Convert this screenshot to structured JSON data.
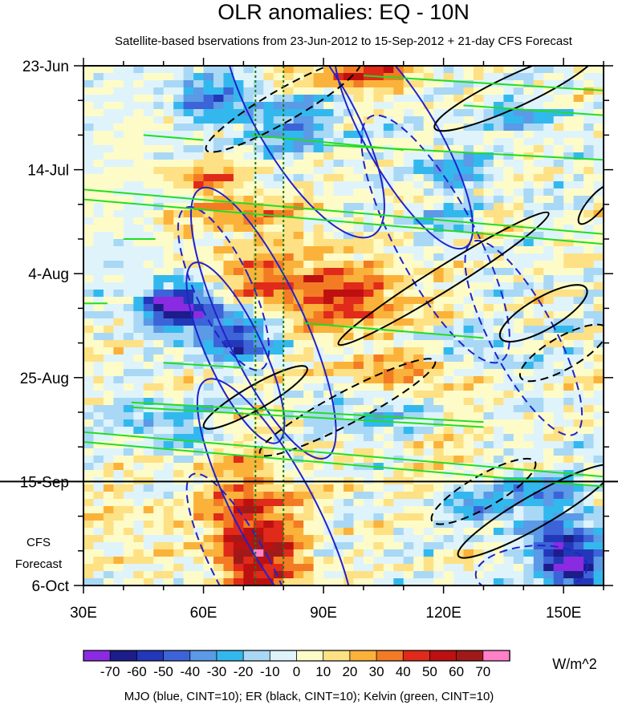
{
  "chart_data": {
    "type": "heatmap",
    "title": "OLR anomalies: EQ - 10N",
    "subtitle": "Satellite-based bservations from 23-Jun-2012 to 15-Sep-2012 + 21-day CFS Forecast",
    "x_axis": {
      "unit": "degrees longitude",
      "range": [
        30,
        160
      ],
      "major_ticks": [
        30,
        60,
        90,
        120,
        150
      ],
      "tick_labels": [
        "30E",
        "60E",
        "90E",
        "120E",
        "150E"
      ],
      "minor_tick_step": 10
    },
    "y_axis": {
      "unit": "days since 23-Jun-2012 (increasing downward)",
      "range": [
        0,
        105
      ],
      "major_ticks": [
        0,
        21,
        42,
        63,
        84,
        105
      ],
      "tick_labels": [
        "23-Jun",
        "14-Jul",
        "4-Aug",
        "25-Aug",
        "15-Sep",
        "6-Oct"
      ],
      "minor_tick_step": 7
    },
    "forecast_divider_day": 84,
    "forecast_label_lines": [
      "CFS",
      "Forecast"
    ],
    "reference_longitudes": [
      73,
      80
    ],
    "colorbar": {
      "unit": "W/m^2",
      "levels": [
        -70,
        -60,
        -50,
        -40,
        -30,
        -20,
        -10,
        0,
        10,
        20,
        30,
        40,
        50,
        60,
        70
      ],
      "tick_labels": [
        "-70",
        "-60",
        "-50",
        "-40",
        "-30",
        "-20",
        "-10",
        "0",
        "10",
        "20",
        "30",
        "40",
        "50",
        "60",
        "70"
      ],
      "colors": [
        "#8a2be2",
        "#1c1c8a",
        "#2238b8",
        "#3c64d8",
        "#5a9ae6",
        "#33b8ee",
        "#a8d8f5",
        "#dff3fb",
        "#fdfcc8",
        "#fde184",
        "#fbb23a",
        "#f37b24",
        "#e02a1a",
        "#bd1010",
        "#a01a1a",
        "#ff7fc8"
      ]
    },
    "contour_footer": "MJO (blue, CINT=10); ER (black, CINT=10); Kelvin (green, CINT=10)",
    "shading_features": [
      {
        "lon": 75,
        "day": 44,
        "w": 14,
        "h": 7,
        "v": 35
      },
      {
        "lon": 96,
        "day": 47,
        "w": 18,
        "h": 8,
        "v": 38
      },
      {
        "lon": 70,
        "day": 30,
        "w": 14,
        "h": 5,
        "v": 28
      },
      {
        "lon": 60,
        "day": 22,
        "w": 12,
        "h": 4,
        "v": 25
      },
      {
        "lon": 110,
        "day": 62,
        "w": 18,
        "h": 4,
        "v": 28
      },
      {
        "lon": 100,
        "day": 2,
        "w": 14,
        "h": 3,
        "v": 45
      },
      {
        "lon": 125,
        "day": 33,
        "w": 12,
        "h": 3,
        "v": 22
      },
      {
        "lon": 70,
        "day": 94,
        "w": 9,
        "h": 14,
        "v": 55
      },
      {
        "lon": 80,
        "day": 100,
        "w": 8,
        "h": 7,
        "v": 35
      },
      {
        "lon": 88,
        "day": 88,
        "w": 9,
        "h": 5,
        "v": 12
      },
      {
        "lon": 40,
        "day": 94,
        "w": 14,
        "h": 10,
        "v": 12
      },
      {
        "lon": 122,
        "day": 80,
        "w": 14,
        "h": 4,
        "v": 12
      },
      {
        "lon": 150,
        "day": 96,
        "w": 10,
        "h": 8,
        "v": -40
      },
      {
        "lon": 152,
        "day": 101,
        "w": 7,
        "h": 5,
        "v": -55
      },
      {
        "lon": 130,
        "day": 90,
        "w": 8,
        "h": 3,
        "v": -40
      },
      {
        "lon": 140,
        "day": 85,
        "w": 12,
        "h": 3,
        "v": -30
      },
      {
        "lon": 62,
        "day": 50,
        "w": 14,
        "h": 5,
        "v": -45
      },
      {
        "lon": 68,
        "day": 56,
        "w": 10,
        "h": 3,
        "v": -55
      },
      {
        "lon": 52,
        "day": 48,
        "w": 8,
        "h": 3,
        "v": -60
      },
      {
        "lon": 80,
        "day": 12,
        "w": 14,
        "h": 6,
        "v": -32
      },
      {
        "lon": 60,
        "day": 6,
        "w": 10,
        "h": 4,
        "v": -40
      },
      {
        "lon": 122,
        "day": 32,
        "w": 10,
        "h": 3,
        "v": -40
      },
      {
        "lon": 122,
        "day": 21,
        "w": 10,
        "h": 4,
        "v": -30
      },
      {
        "lon": 140,
        "day": 10,
        "w": 10,
        "h": 4,
        "v": -25
      },
      {
        "lon": 100,
        "day": 70,
        "w": 12,
        "h": 4,
        "v": -25
      },
      {
        "lon": 48,
        "day": 72,
        "w": 14,
        "h": 4,
        "v": -25
      },
      {
        "lon": 42,
        "day": 40,
        "w": 10,
        "h": 3,
        "v": -20
      },
      {
        "lon": 130,
        "day": 58,
        "w": 14,
        "h": 4,
        "v": -20
      }
    ],
    "contours": {
      "mjo_blue": [
        {
          "style": "solid",
          "lon": 85,
          "day": 10,
          "rx": 12,
          "ry": 28,
          "rot": -30
        },
        {
          "style": "solid",
          "lon": 110,
          "day": 15,
          "rx": 9,
          "ry": 25,
          "rot": -30
        },
        {
          "style": "dashed",
          "lon": 118,
          "day": 35,
          "rx": 10,
          "ry": 28,
          "rot": -28
        },
        {
          "style": "dashed",
          "lon": 140,
          "day": 55,
          "rx": 8,
          "ry": 22,
          "rot": -28
        },
        {
          "style": "solid",
          "lon": 75,
          "day": 52,
          "rx": 10,
          "ry": 30,
          "rot": -25
        },
        {
          "style": "solid",
          "lon": 68,
          "day": 58,
          "rx": 7,
          "ry": 20,
          "rot": -25
        },
        {
          "style": "dashed",
          "lon": 65,
          "day": 45,
          "rx": 7,
          "ry": 18,
          "rot": -25
        },
        {
          "style": "dashed",
          "lon": 70,
          "day": 102,
          "rx": 7,
          "ry": 22,
          "rot": -28
        },
        {
          "style": "solid",
          "lon": 78,
          "day": 90,
          "rx": 10,
          "ry": 30,
          "rot": -28
        },
        {
          "style": "dashed",
          "lon": 142,
          "day": 102,
          "rx": 14,
          "ry": 5,
          "rot": -5
        },
        {
          "style": "solid",
          "lon": 150,
          "day": 110,
          "rx": 12,
          "ry": 5,
          "rot": 0
        }
      ],
      "er_black": [
        {
          "style": "dashed",
          "lon": 80,
          "day": 8,
          "rx": 4,
          "ry": 18,
          "rot": 60
        },
        {
          "style": "solid",
          "lon": 138,
          "day": 5,
          "rx": 4,
          "ry": 18,
          "rot": 65
        },
        {
          "style": "solid",
          "lon": 120,
          "day": 43,
          "rx": 3,
          "ry": 25,
          "rot": 58
        },
        {
          "style": "solid",
          "lon": 73,
          "day": 67,
          "rx": 3,
          "ry": 12,
          "rot": 60
        },
        {
          "style": "dashed",
          "lon": 96,
          "day": 69,
          "rx": 4,
          "ry": 20,
          "rot": 62
        },
        {
          "style": "solid",
          "lon": 145,
          "day": 50,
          "rx": 4,
          "ry": 10,
          "rot": 60
        },
        {
          "style": "dashed",
          "lon": 150,
          "day": 58,
          "rx": 4,
          "ry": 10,
          "rot": 60
        },
        {
          "style": "solid",
          "lon": 143,
          "day": 90,
          "rx": 4,
          "ry": 18,
          "rot": 60
        },
        {
          "style": "dashed",
          "lon": 130,
          "day": 86,
          "rx": 4,
          "ry": 12,
          "rot": 60
        },
        {
          "style": "solid",
          "lon": 158,
          "day": 28,
          "rx": 2,
          "ry": 5,
          "rot": 40
        }
      ],
      "kelvin_green": [
        {
          "lon1": 30,
          "day1": 25,
          "lon2": 160,
          "day2": 34
        },
        {
          "lon1": 30,
          "day1": 27,
          "lon2": 160,
          "day2": 36
        },
        {
          "lon1": 40,
          "day1": 35,
          "lon2": 48,
          "day2": 35
        },
        {
          "lon1": 30,
          "day1": 74,
          "lon2": 160,
          "day2": 83
        },
        {
          "lon1": 30,
          "day1": 76,
          "lon2": 160,
          "day2": 85
        },
        {
          "lon1": 42,
          "day1": 68,
          "lon2": 130,
          "day2": 72
        },
        {
          "lon1": 42,
          "day1": 69,
          "lon2": 130,
          "day2": 73
        },
        {
          "lon1": 85,
          "day1": 52,
          "lon2": 130,
          "day2": 55
        },
        {
          "lon1": 90,
          "day1": 16,
          "lon2": 160,
          "day2": 19
        },
        {
          "lon1": 100,
          "day1": 2,
          "lon2": 160,
          "day2": 5
        },
        {
          "lon1": 125,
          "day1": 8,
          "lon2": 160,
          "day2": 10
        },
        {
          "lon1": 30,
          "day1": 48,
          "lon2": 36,
          "day2": 48
        },
        {
          "lon1": 50,
          "day1": 60,
          "lon2": 70,
          "day2": 61
        },
        {
          "lon1": 45,
          "day1": 14,
          "lon2": 60,
          "day2": 15
        },
        {
          "lon1": 72,
          "day1": 14,
          "lon2": 110,
          "day2": 17
        }
      ]
    }
  }
}
